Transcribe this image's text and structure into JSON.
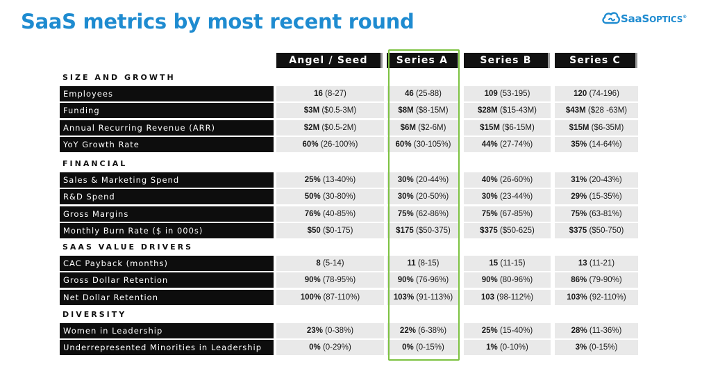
{
  "title": "SaaS metrics by most recent round",
  "logo": {
    "main": "SaaS",
    "suffix": "OPTICS",
    "tm": "®"
  },
  "columns": [
    "Angel / Seed",
    "Series A",
    "Series B",
    "Series C"
  ],
  "colors": {
    "title": "#1e8bd0",
    "label_bg": "#0d0d0d",
    "cell_bg": "#e9e9e9",
    "highlight": "#7dc242"
  },
  "highlighted_column": "Series A",
  "sections": [
    {
      "name": "SIZE AND GROWTH",
      "rows": [
        {
          "label": "Employees",
          "cells": [
            {
              "b": "16",
              "r": " (8-27)"
            },
            {
              "b": "46",
              "r": " (25-88)"
            },
            {
              "b": "109",
              "r": " (53-195)"
            },
            {
              "b": "120",
              "r": " (74-196)"
            }
          ]
        },
        {
          "label": "Funding",
          "cells": [
            {
              "b": "$3M",
              "r": " ($0.5-3M)"
            },
            {
              "b": "$8M",
              "r": " ($8-15M)"
            },
            {
              "b": "$28M",
              "r": " ($15-43M)"
            },
            {
              "b": "$43M",
              "r": " ($28 -63M)"
            }
          ]
        },
        {
          "label": "Annual Recurring Revenue (ARR)",
          "cells": [
            {
              "b": "$2M",
              "r": " ($0.5-2M)"
            },
            {
              "b": "$6M",
              "r": " ($2-6M)"
            },
            {
              "b": "$15M",
              "r": " ($6-15M)"
            },
            {
              "b": "$15M",
              "r": " ($6-35M)"
            }
          ]
        },
        {
          "label": "YoY Growth Rate",
          "cells": [
            {
              "b": "60%",
              "r": " (26-100%)"
            },
            {
              "b": "60%",
              "r": " (30-105%)"
            },
            {
              "b": "44%",
              "r": " (27-74%)"
            },
            {
              "b": "35%",
              "r": " (14-64%)"
            }
          ]
        }
      ]
    },
    {
      "name": "FINANCIAL",
      "rows": [
        {
          "label": "Sales & Marketing Spend",
          "cells": [
            {
              "b": "25%",
              "r": " (13-40%)"
            },
            {
              "b": "30%",
              "r": " (20-44%)"
            },
            {
              "b": "40%",
              "r": " (26-60%)"
            },
            {
              "b": "31%",
              "r": " (20-43%)"
            }
          ]
        },
        {
          "label": "R&D Spend",
          "cells": [
            {
              "b": "50%",
              "r": " (30-80%)"
            },
            {
              "b": "30%",
              "r": " (20-50%)"
            },
            {
              "b": "30%",
              "r": " (23-44%)"
            },
            {
              "b": "29%",
              "r": " (15-35%)"
            }
          ]
        },
        {
          "label": "Gross Margins",
          "cells": [
            {
              "b": "76%",
              "r": " (40-85%)"
            },
            {
              "b": "75%",
              "r": " (62-86%)"
            },
            {
              "b": "75%",
              "r": " (67-85%)"
            },
            {
              "b": "75%",
              "r": " (63-81%)"
            }
          ]
        },
        {
          "label": "Monthly Burn Rate ($ in 000s)",
          "cells": [
            {
              "b": "$50",
              "r": " ($0-175)"
            },
            {
              "b": "$175",
              "r": " ($50-375)"
            },
            {
              "b": "$375",
              "r": " ($50-625)"
            },
            {
              "b": "$375",
              "r": " ($50-750)"
            }
          ]
        }
      ]
    },
    {
      "name": "SAAS VALUE DRIVERS",
      "rows": [
        {
          "label": "CAC Payback (months)",
          "cells": [
            {
              "b": "8",
              "r": " (5-14)"
            },
            {
              "b": "11",
              "r": " (8-15)"
            },
            {
              "b": "15",
              "r": " (11-15)"
            },
            {
              "b": "13",
              "r": " (11-21)"
            }
          ]
        },
        {
          "label": "Gross Dollar Retention",
          "cells": [
            {
              "b": "90%",
              "r": " (78-95%)"
            },
            {
              "b": "90%",
              "r": " (76-96%)"
            },
            {
              "b": "90%",
              "r": " (80-96%)"
            },
            {
              "b": "86%",
              "r": " (79-90%)"
            }
          ]
        },
        {
          "label": "Net Dollar Retention",
          "cells": [
            {
              "b": "100%",
              "r": " (87-110%)"
            },
            {
              "b": "103%",
              "r": " (91-113%)"
            },
            {
              "b": "103",
              "r": " (98-112%)"
            },
            {
              "b": "103%",
              "r": " (92-110%)"
            }
          ]
        }
      ]
    },
    {
      "name": "DIVERSITY",
      "rows": [
        {
          "label": "Women in Leadership",
          "cells": [
            {
              "b": "23%",
              "r": " (0-38%)"
            },
            {
              "b": "22%",
              "r": " (6-38%)"
            },
            {
              "b": "25%",
              "r": " (15-40%)"
            },
            {
              "b": "28%",
              "r": " (11-36%)"
            }
          ]
        },
        {
          "label": "Underrepresented Minorities in Leadership",
          "cells": [
            {
              "b": "0%",
              "r": " (0-29%)"
            },
            {
              "b": "0%",
              "r": " (0-15%)"
            },
            {
              "b": "1%",
              "r": " (0-10%)"
            },
            {
              "b": "3%",
              "r": " (0-15%)"
            }
          ]
        }
      ]
    }
  ]
}
